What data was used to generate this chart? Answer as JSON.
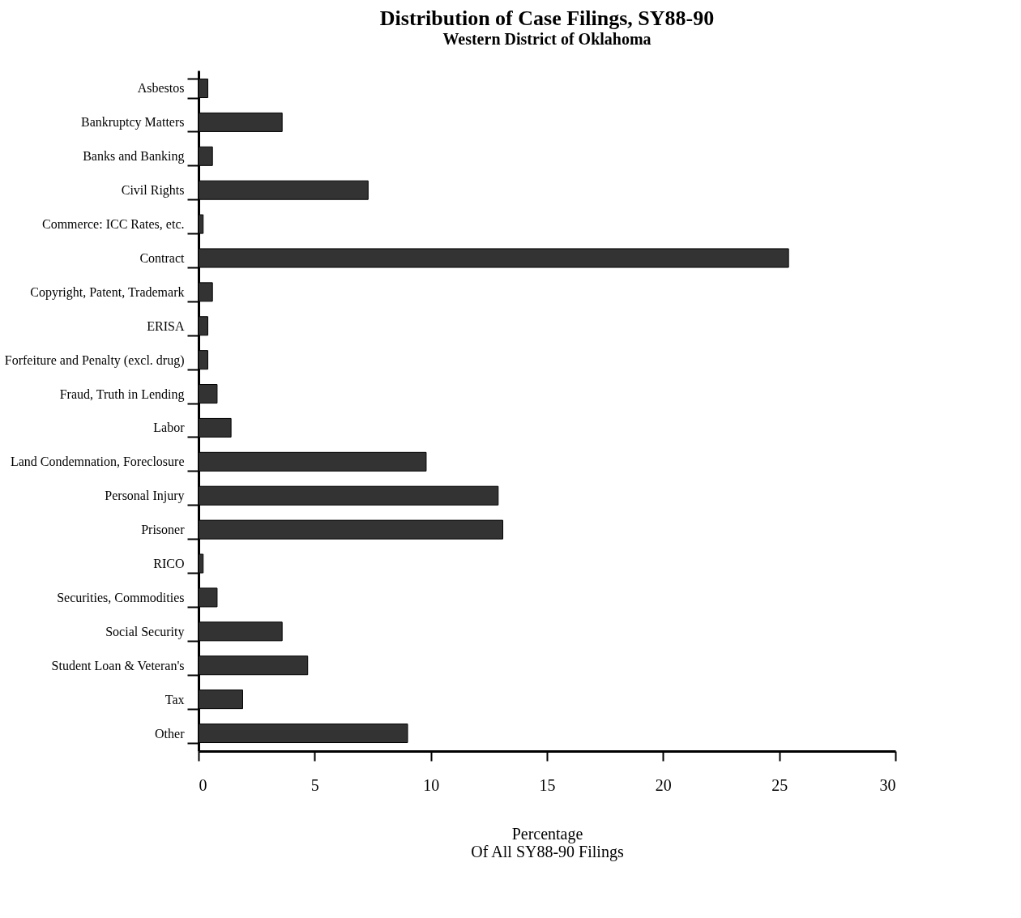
{
  "chart_data": {
    "type": "bar",
    "orientation": "horizontal",
    "title": "Distribution of Case Filings, SY88-90",
    "subtitle": "Western District of Oklahoma",
    "xlabel": "Percentage\nOf All SY88-90 Filings",
    "categories": [
      "Asbestos",
      "Bankruptcy Matters",
      "Banks and Banking",
      "Civil Rights",
      "Commerce: ICC Rates, etc.",
      "Contract",
      "Copyright, Patent, Trademark",
      "ERISA",
      "Forfeiture and Penalty (excl. drug)",
      "Fraud, Truth in Lending",
      "Labor",
      "Land Condemnation, Foreclosure",
      "Personal Injury",
      "Prisoner",
      "RICO",
      "Securities, Commodities",
      "Social Security",
      "Student Loan & Veteran's",
      "Tax",
      "Other"
    ],
    "values": [
      0.4,
      3.6,
      0.6,
      7.3,
      0.2,
      25.4,
      0.6,
      0.4,
      0.4,
      0.8,
      1.4,
      9.8,
      12.9,
      13.1,
      0.2,
      0.8,
      3.6,
      4.7,
      1.9,
      9.0
    ],
    "color": "#333333",
    "xlim": [
      0,
      30
    ],
    "xticks": [
      0,
      5,
      10,
      15,
      20,
      25,
      30
    ],
    "grid": false
  }
}
